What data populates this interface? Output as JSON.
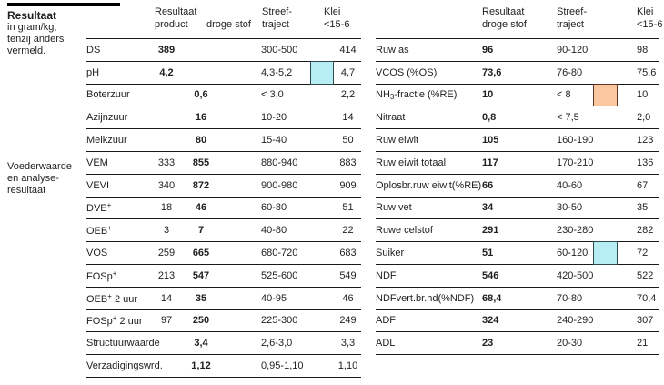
{
  "title_block": {
    "title": "Resultaat",
    "subtitle_lines": [
      "in gram/kg,",
      "tenzij anders",
      "vermeld."
    ]
  },
  "section_label_lines": [
    "Voederwaarde",
    "en analyse-",
    "resultaat"
  ],
  "colors": {
    "highlight_cyan": "#b7eef4",
    "highlight_cyan_border": "#2e4a4d",
    "highlight_orange": "#fbc7a1",
    "highlight_orange_border": "#5f3322",
    "rule_line": "#1a1a1a",
    "text": "#1f1f1f"
  },
  "left_table": {
    "header": {
      "result": "Resultaat",
      "col_product": "product",
      "col_dry": "droge stof",
      "streef": [
        "Streef-",
        "traject"
      ],
      "klei": [
        "Klei",
        "<15-6"
      ]
    },
    "rows": [
      {
        "label": "DS",
        "product": "389",
        "dry": "",
        "streef": "300-500",
        "klei": "414"
      },
      {
        "label": "pH",
        "product": "4,2",
        "dry": "",
        "streef": "4,3-5,2",
        "klei": "4,7",
        "highlight": "cyan"
      },
      {
        "label": "Boterzuur",
        "product": "",
        "dry": "0,6",
        "streef": "< 3,0",
        "klei": "2,2"
      },
      {
        "label": "Azijnzuur",
        "product": "",
        "dry": "16",
        "streef": "10-20",
        "klei": "14"
      },
      {
        "label": "Melkzuur",
        "product": "",
        "dry": "80",
        "streef": "15-40",
        "klei": "50"
      },
      {
        "label": "VEM",
        "product": "333",
        "dry": "855",
        "streef": "880-940",
        "klei": "883"
      },
      {
        "label": "VEVI",
        "product": "340",
        "dry": "872",
        "streef": "900-980",
        "klei": "909"
      },
      {
        "label": "DVE⁺",
        "product": "18",
        "dry": "46",
        "streef": "60-80",
        "klei": "51"
      },
      {
        "label": "OEB⁺",
        "product": "3",
        "dry": "7",
        "streef": "40-80",
        "klei": "22"
      },
      {
        "label": "VOS",
        "product": "259",
        "dry": "665",
        "streef": "680-720",
        "klei": "683"
      },
      {
        "label": "FOSp⁺",
        "product": "213",
        "dry": "547",
        "streef": "525-600",
        "klei": "549"
      },
      {
        "label": "OEB⁺ 2 uur",
        "product": "14",
        "dry": "35",
        "streef": "40-95",
        "klei": "46"
      },
      {
        "label": "FOSp⁺ 2 uur",
        "product": "97",
        "dry": "250",
        "streef": "225-300",
        "klei": "249"
      },
      {
        "label": "Structuurwaarde",
        "product": "",
        "dry": "3,4",
        "streef": "2,6-3,0",
        "klei": "3,3"
      },
      {
        "label": "Verzadigingswrd.",
        "product": "",
        "dry": "1,12",
        "streef": "0,95-1,10",
        "klei": "1,10"
      }
    ]
  },
  "right_table": {
    "header": {
      "result": [
        "Resultaat",
        "droge stof"
      ],
      "streef": [
        "Streef-",
        "traject"
      ],
      "klei": [
        "Klei",
        "<15-6"
      ]
    },
    "rows": [
      {
        "label": "Ruw as",
        "value": "96",
        "streef": "90-120",
        "klei": "98"
      },
      {
        "label": "VCOS (%OS)",
        "value": "73,6",
        "streef": "76-80",
        "klei": "75,6"
      },
      {
        "label": "NH₃-fractie (%RE)",
        "value": "10",
        "streef": "< 8",
        "klei": "10",
        "highlight": "orange"
      },
      {
        "label": "Nitraat",
        "value": "0,8",
        "streef": "< 7,5",
        "klei": "2,0"
      },
      {
        "label": "Ruw eiwit",
        "value": "105",
        "streef": "160-190",
        "klei": "123"
      },
      {
        "label": "Ruw eiwit totaal",
        "value": "117",
        "streef": "170-210",
        "klei": "136"
      },
      {
        "label": "Oplosbr.ruw eiwit(%RE)",
        "value": "66",
        "streef": "40-60",
        "klei": "67"
      },
      {
        "label": "Ruw vet",
        "value": "34",
        "streef": "30-50",
        "klei": "35"
      },
      {
        "label": "Ruwe celstof",
        "value": "291",
        "streef": "230-280",
        "klei": "282"
      },
      {
        "label": "Suiker",
        "value": "51",
        "streef": "60-120",
        "klei": "72",
        "highlight": "cyan"
      },
      {
        "label": "NDF",
        "value": "546",
        "streef": "420-500",
        "klei": "522"
      },
      {
        "label": "NDFvert.br.hd(%NDF)",
        "value": "68,4",
        "streef": "70-80",
        "klei": "70,4"
      },
      {
        "label": "ADF",
        "value": "324",
        "streef": "240-290",
        "klei": "307"
      },
      {
        "label": "ADL",
        "value": "23",
        "streef": "20-30",
        "klei": "21"
      }
    ]
  }
}
